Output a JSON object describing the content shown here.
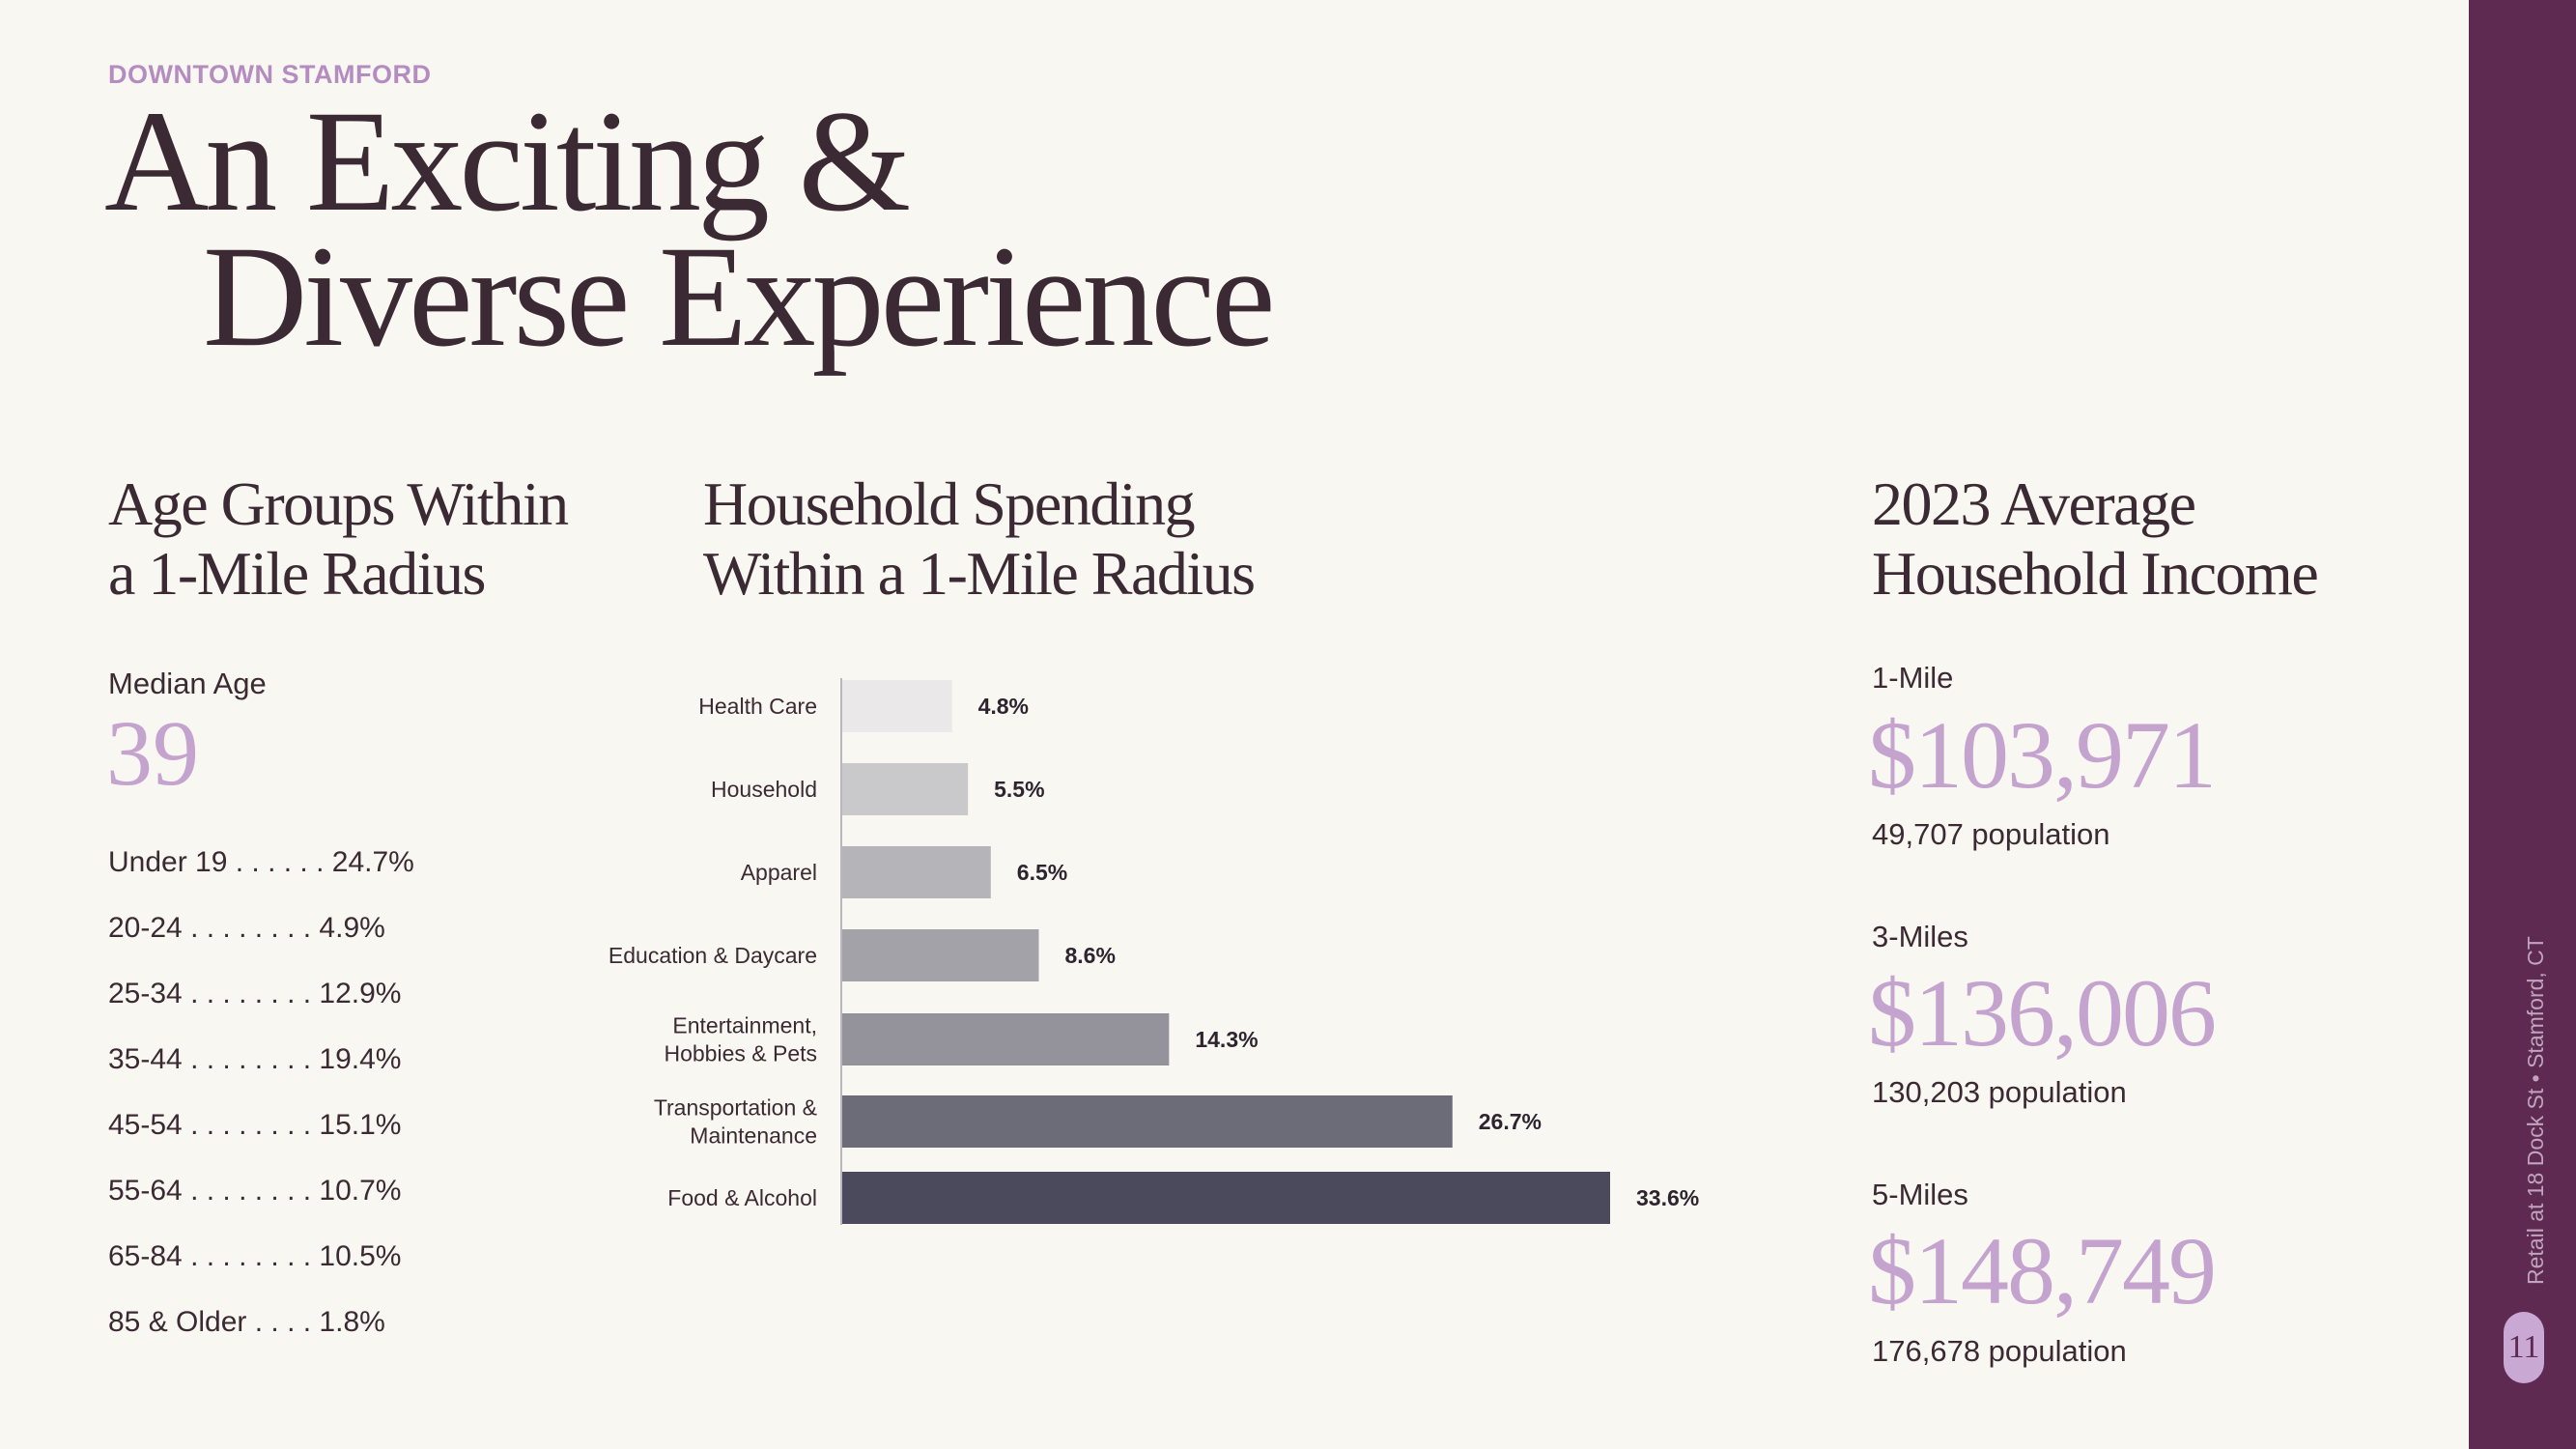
{
  "header": {
    "eyebrow": "DOWNTOWN STAMFORD",
    "title_line1": "An Exciting &",
    "title_line2": "Diverse Experience"
  },
  "age_section": {
    "heading_line1": "Age Groups Within",
    "heading_line2": "a 1-Mile Radius",
    "median_label": "Median Age",
    "median_value": "39",
    "groups": [
      "Under 19 . . . . . . 24.7%",
      "20-24  . . . . . . . . 4.9%",
      "25-34  . . . . . . . . 12.9%",
      "35-44  . . . . . . . . 19.4%",
      "45-54  . . . . . . . . 15.1%",
      "55-64  . . . . . . . . 10.7%",
      "65-84  . . . . . . . . 10.5%",
      "85 & Older  . . . . 1.8%"
    ]
  },
  "spending_section": {
    "heading_line1": "Household Spending",
    "heading_line2": "Within a 1-Mile Radius"
  },
  "chart_data": {
    "type": "bar",
    "orientation": "horizontal",
    "title": "Household Spending Within a 1-Mile Radius",
    "categories": [
      [
        "Health Care"
      ],
      [
        "Household"
      ],
      [
        "Apparel"
      ],
      [
        "Education & Daycare"
      ],
      [
        "Entertainment,",
        "Hobbies & Pets"
      ],
      [
        "Transportation &",
        "Maintenance"
      ],
      [
        "Food & Alcohol"
      ]
    ],
    "values": [
      4.8,
      5.5,
      6.5,
      8.6,
      14.3,
      26.7,
      33.6
    ],
    "value_labels": [
      "4.8%",
      "5.5%",
      "6.5%",
      "8.6%",
      "14.3%",
      "26.7%",
      "33.6%"
    ],
    "colors": [
      "#ebe8ea",
      "#c9c8cb",
      "#b5b4b9",
      "#a3a2a9",
      "#94939c",
      "#6c6b78",
      "#4b4a5c"
    ],
    "xlim": [
      0,
      33.6
    ]
  },
  "income_section": {
    "heading_line1": "2023 Average",
    "heading_line2": "Household Income",
    "radii": [
      {
        "label": "1-Mile",
        "value": "$103,971",
        "population": "49,707 population"
      },
      {
        "label": "3-Miles",
        "value": "$136,006",
        "population": "130,203 population"
      },
      {
        "label": "5-Miles",
        "value": "$148,749",
        "population": "176,678 population"
      }
    ]
  },
  "sidebar": {
    "caption": "Retail at 18 Dock St • Stamford, CT",
    "page_number": "11",
    "color": "#5e2a52",
    "accent": "#c4a3cf"
  }
}
